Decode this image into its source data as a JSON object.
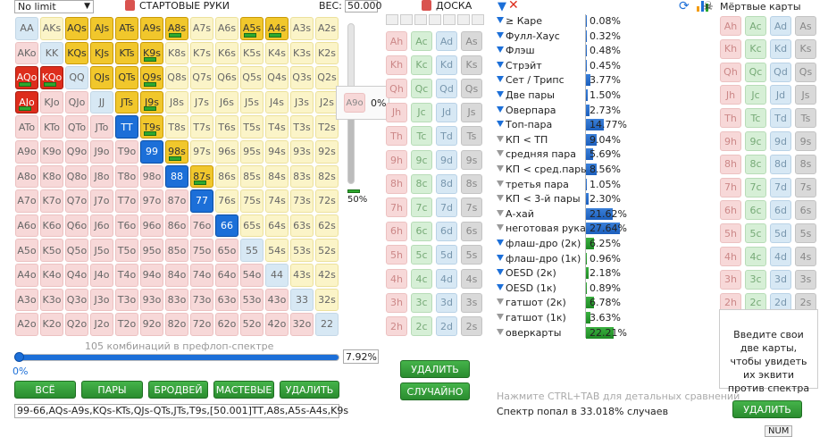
{
  "game_select": "No limit",
  "starting_hands_label": "СТАРТОВЫЕ РУКИ",
  "weight_label": "ВЕС:",
  "weight_value": "50.000",
  "matrix": [
    [
      "AA",
      "AKs",
      "AQs",
      "AJs",
      "ATs",
      "A9s",
      "A8s",
      "A7s",
      "A6s",
      "A5s",
      "A4s",
      "A3s",
      "A2s"
    ],
    [
      "AKo",
      "KK",
      "KQs",
      "KJs",
      "KTs",
      "K9s",
      "K8s",
      "K7s",
      "K6s",
      "K5s",
      "K4s",
      "K3s",
      "K2s"
    ],
    [
      "AQo",
      "KQo",
      "QQ",
      "QJs",
      "QTs",
      "Q9s",
      "Q8s",
      "Q7s",
      "Q6s",
      "Q5s",
      "Q4s",
      "Q3s",
      "Q2s"
    ],
    [
      "AJo",
      "KJo",
      "QJo",
      "JJ",
      "JTs",
      "J9s",
      "J8s",
      "J7s",
      "J6s",
      "J5s",
      "J4s",
      "J3s",
      "J2s"
    ],
    [
      "ATo",
      "KTo",
      "QTo",
      "JTo",
      "TT",
      "T9s",
      "T8s",
      "T7s",
      "T6s",
      "T5s",
      "T4s",
      "T3s",
      "T2s"
    ],
    [
      "A9o",
      "K9o",
      "Q9o",
      "J9o",
      "T9o",
      "99",
      "98s",
      "97s",
      "96s",
      "95s",
      "94s",
      "93s",
      "92s"
    ],
    [
      "A8o",
      "K8o",
      "Q8o",
      "J8o",
      "T8o",
      "98o",
      "88",
      "87s",
      "86s",
      "85s",
      "84s",
      "83s",
      "82s"
    ],
    [
      "A7o",
      "K7o",
      "Q7o",
      "J7o",
      "T7o",
      "97o",
      "87o",
      "77",
      "76s",
      "75s",
      "74s",
      "73s",
      "72s"
    ],
    [
      "A6o",
      "K6o",
      "Q6o",
      "J6o",
      "T6o",
      "96o",
      "86o",
      "76o",
      "66",
      "65s",
      "64s",
      "63s",
      "62s"
    ],
    [
      "A5o",
      "K5o",
      "Q5o",
      "J5o",
      "T5o",
      "95o",
      "85o",
      "75o",
      "65o",
      "55",
      "54s",
      "53s",
      "52s"
    ],
    [
      "A4o",
      "K4o",
      "Q4o",
      "J4o",
      "T4o",
      "94o",
      "84o",
      "74o",
      "64o",
      "54o",
      "44",
      "43s",
      "42s"
    ],
    [
      "A3o",
      "K3o",
      "Q3o",
      "J3o",
      "T3o",
      "93o",
      "83o",
      "73o",
      "63o",
      "53o",
      "43o",
      "33",
      "32s"
    ],
    [
      "A2o",
      "K2o",
      "Q2o",
      "J2o",
      "T2o",
      "92o",
      "82o",
      "72o",
      "62o",
      "52o",
      "42o",
      "32o",
      "22"
    ]
  ],
  "selected_hands": [
    "AQs",
    "AJs",
    "ATs",
    "A9s",
    "A8s",
    "A5s",
    "A4s",
    "KQs",
    "KJs",
    "KTs",
    "K9s",
    "QJs",
    "QTs",
    "Q9s",
    "JTs",
    "J9s",
    "T9s",
    "98s",
    "87s",
    "AQo",
    "KQo",
    "AJo",
    "TT",
    "99",
    "88",
    "77",
    "66"
  ],
  "partial_hands": [
    "A8s",
    "A5s",
    "A4s",
    "K9s",
    "Q9s",
    "J9s",
    "T9s",
    "98s",
    "87s",
    "AQo",
    "KQo",
    "AJo"
  ],
  "preview_hand": "A9o",
  "preview_pct": "0%",
  "weight_slider_pct": "50%",
  "combos_label": "105 комбинаций в префлоп-спектре",
  "range_pct": "7.92%",
  "range_zero": "0%",
  "buttons": {
    "all": "ВСЁ",
    "pairs": "ПАРЫ",
    "broadways": "БРОДВЕЙ",
    "suited": "МАСТЕВЫЕ",
    "delete": "УДАЛИТЬ"
  },
  "range_text": "99-66,AQs-A9s,KQs-KTs,QJs-QTs,JTs,T9s,[50.001]TT,A8s,A5s-A4s,K9s",
  "board_label": "ДОСКА",
  "ranks": [
    "A",
    "K",
    "Q",
    "J",
    "T",
    "9",
    "8",
    "7",
    "6",
    "5",
    "4",
    "3",
    "2"
  ],
  "suits": [
    "h",
    "c",
    "d",
    "s"
  ],
  "board_buttons": {
    "delete": "УДАЛИТЬ",
    "random": "СЛУЧАЙНО"
  },
  "stats_made": [
    {
      "label": "≥ Каре",
      "value": "0.08%",
      "pct": 0.08,
      "filter": "blue"
    },
    {
      "label": "Фулл-Хаус",
      "value": "0.32%",
      "pct": 0.32,
      "filter": "blue"
    },
    {
      "label": "Флэш",
      "value": "0.48%",
      "pct": 0.48,
      "filter": "blue"
    },
    {
      "label": "Стрэйт",
      "value": "0.45%",
      "pct": 0.45,
      "filter": "blue"
    },
    {
      "label": "Сет / Трипс",
      "value": "3.77%",
      "pct": 3.77,
      "filter": "blue"
    },
    {
      "label": "Две пары",
      "value": "1.50%",
      "pct": 1.5,
      "filter": "blue"
    },
    {
      "label": "Оверпара",
      "value": "2.73%",
      "pct": 2.73,
      "filter": "blue"
    },
    {
      "label": "Топ-пара",
      "value": "14.77%",
      "pct": 14.77,
      "filter": "blue"
    },
    {
      "label": "КП < ТП",
      "value": "9.04%",
      "pct": 9.04,
      "filter": "grey"
    },
    {
      "label": "средняя пара",
      "value": "5.69%",
      "pct": 5.69,
      "filter": "grey"
    },
    {
      "label": "КП < сред.пары",
      "value": "8.56%",
      "pct": 8.56,
      "filter": "grey"
    },
    {
      "label": "третья пара",
      "value": "1.05%",
      "pct": 1.05,
      "filter": "grey"
    },
    {
      "label": "КП < 3-й пары",
      "value": "2.30%",
      "pct": 2.3,
      "filter": "grey"
    },
    {
      "label": "А-хай",
      "value": "21.62%",
      "pct": 21.62,
      "filter": "grey"
    },
    {
      "label": "неготовая рука",
      "value": "27.64%",
      "pct": 27.64,
      "filter": "grey"
    }
  ],
  "stats_draws": [
    {
      "label": "флаш-дро (2к)",
      "value": "6.25%",
      "pct": 6.25,
      "filter": "blue"
    },
    {
      "label": "флаш-дро (1к)",
      "value": "0.96%",
      "pct": 0.96,
      "filter": "blue"
    },
    {
      "label": "OESD (2к)",
      "value": "2.18%",
      "pct": 2.18,
      "filter": "blue"
    },
    {
      "label": "OESD (1к)",
      "value": "0.89%",
      "pct": 0.89,
      "filter": "blue"
    },
    {
      "label": "гатшот (2к)",
      "value": "6.78%",
      "pct": 6.78,
      "filter": "grey"
    },
    {
      "label": "гатшот (1к)",
      "value": "3.63%",
      "pct": 3.63,
      "filter": "grey"
    },
    {
      "label": "оверкарты",
      "value": "22.21%",
      "pct": 22.21,
      "filter": "grey"
    }
  ],
  "hint_text": "Нажмите CTRL+TAB для детальных сравнений",
  "result_text": "Спектр попал в 33.018% случаев",
  "dead_cards_title": "Мёртвые карты",
  "info_text": "Введите свои две карты, чтобы увидеть их эквити против спектра",
  "dead_delete": "УДАЛИТЬ",
  "num_badge": "NUM",
  "colors": {
    "pair_selected": "#1c6fd8",
    "suited_selected": "#f1c72c",
    "offsuit_selected": "#dd2d1c",
    "green_button": "#2a8c2f"
  }
}
